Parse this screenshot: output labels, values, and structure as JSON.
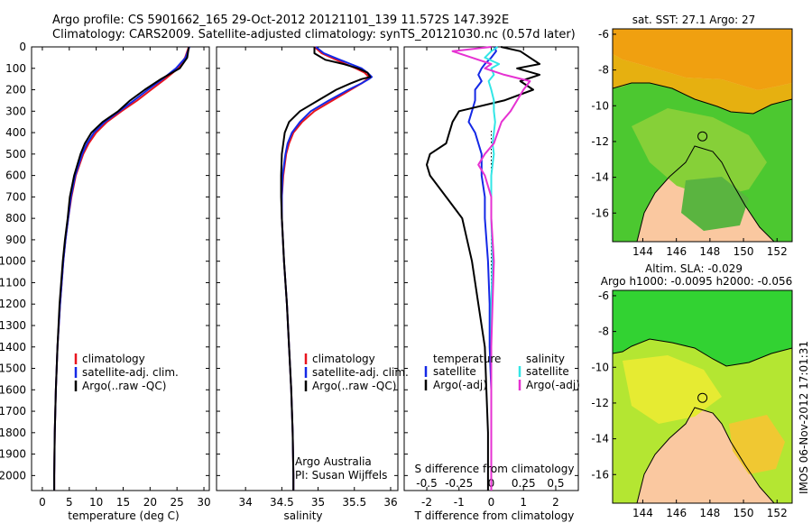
{
  "header": {
    "line1": "Argo profile: CS 5901662_165 29-Oct-2012 20121101_139 11.572S 147.392E",
    "line2": "Climatology: CARS2009. Satellite-adjusted climatology: synTS_20121030.nc (0.57d later)"
  },
  "colors": {
    "clim": "#e8141e",
    "sat": "#1428e6",
    "argo": "#000000",
    "sal_sat": "#32e6e6",
    "sal_argo": "#e632d2",
    "land": "#fac8a0"
  },
  "depth_ticks": [
    "0",
    "100",
    "200",
    "300",
    "400",
    "500",
    "600",
    "700",
    "800",
    "900",
    "1000",
    "1100",
    "1200",
    "1300",
    "1400",
    "1500",
    "1600",
    "1700",
    "1800",
    "1900",
    "2000"
  ],
  "chart_data": [
    {
      "type": "line",
      "name": "temperature-profile",
      "xlabel": "temperature (deg C)",
      "ylabel": "depth",
      "xlim": [
        -2,
        31
      ],
      "ylim": [
        2070,
        0
      ],
      "x_ticks": [
        "0",
        "5",
        "10",
        "15",
        "20",
        "25",
        "30"
      ],
      "depth": [
        0,
        50,
        100,
        150,
        200,
        250,
        300,
        350,
        400,
        450,
        500,
        600,
        700,
        800,
        900,
        1000,
        1200,
        1400,
        1600,
        1800,
        2000,
        2070
      ],
      "series": [
        {
          "name": "climatology",
          "color_key": "clim",
          "values": [
            27.2,
            26.5,
            25.2,
            22.8,
            20.2,
            17.6,
            14.7,
            12.0,
            10.0,
            8.6,
            7.6,
            6.2,
            5.4,
            4.8,
            4.3,
            3.9,
            3.3,
            2.8,
            2.5,
            2.3,
            2.2,
            2.2
          ]
        },
        {
          "name": "satellite-adj. clim.",
          "color_key": "sat",
          "values": [
            27.3,
            26.6,
            24.8,
            22.3,
            19.6,
            17.0,
            14.3,
            11.6,
            9.6,
            8.3,
            7.4,
            6.1,
            5.3,
            4.8,
            4.3,
            3.9,
            3.3,
            2.8,
            2.5,
            2.3,
            2.2,
            2.2
          ]
        },
        {
          "name": "Argo(..raw -QC)",
          "color_key": "argo",
          "values": [
            27.2,
            26.9,
            25.5,
            22.0,
            19.0,
            16.3,
            14.1,
            11.2,
            9.1,
            7.9,
            7.1,
            5.9,
            5.1,
            4.7,
            4.2,
            3.8,
            3.2,
            2.8,
            2.5,
            2.3,
            2.2,
            2.2
          ]
        }
      ],
      "legend": [
        "climatology",
        "satellite-adj. clim.",
        "Argo(..raw -QC)"
      ]
    },
    {
      "type": "line",
      "name": "salinity-profile",
      "xlabel": "salinity",
      "ylabel": "depth",
      "xlim": [
        33.6,
        36.1
      ],
      "ylim": [
        2070,
        0
      ],
      "x_ticks": [
        "34",
        "34.5",
        "35",
        "35.5",
        "36"
      ],
      "depth": [
        0,
        30,
        60,
        80,
        100,
        120,
        140,
        150,
        170,
        200,
        250,
        300,
        350,
        400,
        450,
        500,
        600,
        700,
        800,
        1000,
        1200,
        1400,
        1600,
        1800,
        2000,
        2070
      ],
      "series": [
        {
          "name": "climatology",
          "color_key": "clim",
          "values": [
            34.95,
            35.05,
            35.25,
            35.38,
            35.52,
            35.64,
            35.7,
            35.68,
            35.6,
            35.45,
            35.2,
            34.95,
            34.78,
            34.66,
            34.6,
            34.56,
            34.52,
            34.5,
            34.5,
            34.53,
            34.57,
            34.6,
            34.63,
            34.65,
            34.66,
            34.66
          ]
        },
        {
          "name": "satellite-adj. clim.",
          "color_key": "sat",
          "values": [
            34.97,
            35.08,
            35.3,
            35.45,
            35.6,
            35.68,
            35.74,
            35.7,
            35.6,
            35.42,
            35.15,
            34.9,
            34.75,
            34.64,
            34.58,
            34.55,
            34.51,
            34.5,
            34.5,
            34.53,
            34.57,
            34.6,
            34.63,
            34.65,
            34.66,
            34.66
          ]
        },
        {
          "name": "Argo(..raw -QC)",
          "color_key": "argo",
          "values": [
            34.95,
            34.95,
            35.1,
            35.35,
            35.55,
            35.68,
            35.72,
            35.6,
            35.45,
            35.25,
            35.0,
            34.75,
            34.6,
            34.54,
            34.52,
            34.5,
            34.49,
            34.49,
            34.5,
            34.53,
            34.57,
            34.6,
            34.63,
            34.65,
            34.66,
            34.66
          ]
        }
      ],
      "legend": [
        "climatology",
        "satellite-adj. clim.",
        "Argo(..raw -QC)"
      ],
      "note": [
        "Argo Australia",
        "PI: Susan Wijffels"
      ]
    },
    {
      "type": "line",
      "name": "difference-profile",
      "xlabel": "T difference from climatology",
      "x2label": "S difference from climatology",
      "ylabel": "depth",
      "xlim": [
        -2.7,
        2.7
      ],
      "ylim": [
        2070,
        0
      ],
      "x_ticks": [
        "-2",
        "-1",
        "0",
        "1",
        "2"
      ],
      "s_ticks": [
        "-0.5",
        "-0.25",
        "0",
        "0.25",
        "0.5"
      ],
      "s_tick_values": [
        -0.5,
        -0.25,
        0,
        0.25,
        0.5
      ],
      "depth": [
        0,
        20,
        50,
        80,
        100,
        130,
        160,
        200,
        250,
        300,
        350,
        400,
        450,
        500,
        550,
        600,
        700,
        800,
        1000,
        1200,
        1400,
        1600,
        1800,
        2000,
        2070
      ],
      "series": [
        {
          "name": "temperature satellite",
          "color_key": "sat",
          "values": [
            0.1,
            0.15,
            0.0,
            -0.2,
            -0.3,
            -0.4,
            -0.3,
            -0.5,
            -0.5,
            -0.6,
            -0.7,
            -0.5,
            -0.4,
            -0.3,
            -0.3,
            -0.3,
            -0.2,
            -0.2,
            -0.1,
            -0.05,
            -0.05,
            0.0,
            0.0,
            0.0,
            0.0
          ]
        },
        {
          "name": "temperature Argo(-adj)",
          "color_key": "argo",
          "values": [
            0.3,
            0.9,
            1.2,
            1.5,
            0.8,
            1.5,
            0.9,
            1.3,
            0.4,
            -1.0,
            -1.2,
            -1.3,
            -1.4,
            -1.9,
            -2.0,
            -1.9,
            -1.4,
            -0.9,
            -0.6,
            -0.4,
            -0.2,
            -0.15,
            -0.1,
            -0.1,
            -0.1
          ]
        },
        {
          "name": "salinity satellite",
          "color_key": "sal_sat",
          "values": [
            0.05,
            0.0,
            -0.05,
            0.06,
            0.0,
            0.02,
            -0.02,
            0.0,
            0.02,
            0.02,
            0.03,
            0.02,
            0.01,
            0.02,
            0.01,
            0.0,
            0.0,
            0.0,
            0.01,
            0.0,
            0.0,
            0.0,
            0.0,
            0.0,
            0.0
          ]
        },
        {
          "name": "salinity Argo(-adj)",
          "color_key": "sal_argo",
          "values": [
            0.0,
            -0.3,
            -0.15,
            0.0,
            -0.05,
            0.1,
            0.3,
            0.25,
            0.2,
            0.15,
            0.08,
            0.05,
            0.02,
            -0.05,
            -0.1,
            -0.05,
            0.0,
            0.0,
            0.02,
            0.01,
            0.0,
            0.0,
            0.0,
            0.0,
            0.0
          ]
        }
      ],
      "legend": {
        "temperature_title": "temperature",
        "salinity_title": "salinity",
        "items": [
          "satellite",
          "Argo(-adj)",
          "satellite",
          "Argo(-adj)"
        ]
      }
    },
    {
      "type": "heatmap",
      "name": "sst-map",
      "title": "sat. SST: 27.1  Argo: 27",
      "lon_ticks": [
        "144",
        "146",
        "148",
        "150",
        "152"
      ],
      "lat_ticks": [
        "-6",
        "-8",
        "-10",
        "-12",
        "-14",
        "-16"
      ],
      "lon_range": [
        142.2,
        152.9
      ],
      "lat_range": [
        -17.6,
        -5.7
      ],
      "profile_location": {
        "lon": 147.392,
        "lat": -11.572
      }
    },
    {
      "type": "heatmap",
      "name": "sla-map",
      "title1": "Altim. SLA: -0.029",
      "title2": "Argo h1000: -0.0095  h2000: -0.056",
      "lon_ticks": [
        "144",
        "146",
        "148",
        "150",
        "152"
      ],
      "lat_ticks": [
        "-6",
        "-8",
        "-10",
        "-12",
        "-14",
        "-16"
      ],
      "lon_range": [
        142.2,
        152.9
      ],
      "lat_range": [
        -17.6,
        -5.7
      ],
      "profile_location": {
        "lon": 147.392,
        "lat": -11.572
      }
    }
  ],
  "stamp": "IMOS 06-Nov-2012 17:01:31"
}
